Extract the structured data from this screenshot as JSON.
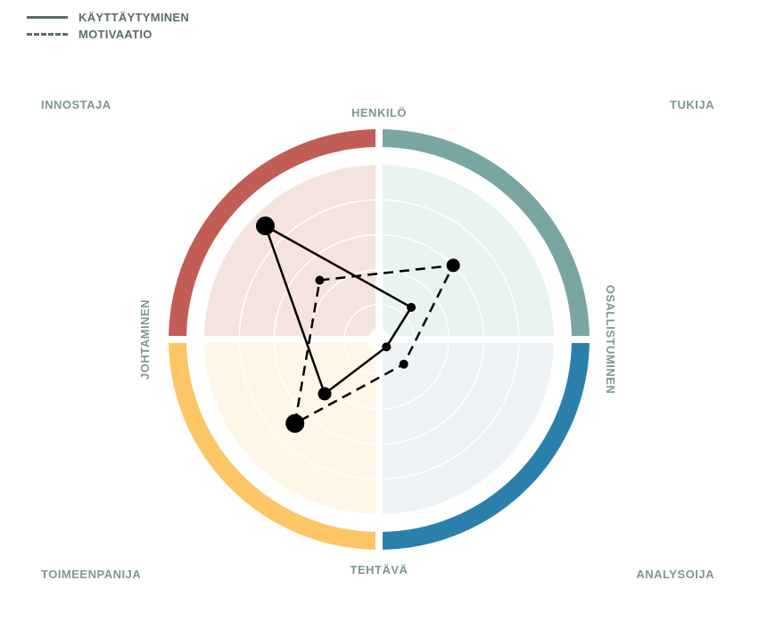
{
  "legend": [
    {
      "label": "KÄYTTÄYTYMINEN",
      "style": "solid"
    },
    {
      "label": "MOTIVAATIO",
      "style": "dashed"
    }
  ],
  "corners": {
    "top_left": "INNOSTAJA",
    "top_right": "TUKIJA",
    "bottom_left": "TOIMEENPANIJA",
    "bottom_right": "ANALYSOIJA"
  },
  "axes": {
    "top": "HENKILÖ",
    "right": "OSALLISTUMINEN",
    "bottom": "TEHTÄVÄ",
    "left": "JOHTAMINEN"
  },
  "chart_data": {
    "type": "radar",
    "rings": 5,
    "range": [
      0,
      5
    ],
    "quadrants": [
      {
        "name": "INNOSTAJA",
        "ring_color": "#c25d56",
        "fill_color": "#f5e4de"
      },
      {
        "name": "TUKIJA",
        "ring_color": "#79a6a3",
        "fill_color": "#e9f4ee"
      },
      {
        "name": "ANALYSOIJA",
        "ring_color": "#2b80ab",
        "fill_color": "#edf2f6"
      },
      {
        "name": "TOIMEENPANIJA",
        "ring_color": "#fcc566",
        "fill_color": "#fef6e7"
      }
    ],
    "series": [
      {
        "name": "KÄYTTÄYTYMINEN",
        "style": "solid",
        "points": [
          {
            "quadrant": "INNOSTAJA",
            "value": 4.6,
            "size": "large"
          },
          {
            "quadrant": "TUKIJA",
            "value": 1.3,
            "size": "small"
          },
          {
            "quadrant": "ANALYSOIJA",
            "value": 0.3,
            "size": "small"
          },
          {
            "quadrant": "TOIMEENPANIJA",
            "value": 2.2,
            "size": "medium"
          }
        ]
      },
      {
        "name": "MOTIVAATIO",
        "style": "dashed",
        "points": [
          {
            "quadrant": "INNOSTAJA",
            "value": 2.4,
            "size": "small"
          },
          {
            "quadrant": "TUKIJA",
            "value": 3.0,
            "size": "medium"
          },
          {
            "quadrant": "ANALYSOIJA",
            "value": 1.0,
            "size": "small"
          },
          {
            "quadrant": "TOIMEENPANIJA",
            "value": 3.4,
            "size": "large"
          }
        ]
      }
    ]
  }
}
